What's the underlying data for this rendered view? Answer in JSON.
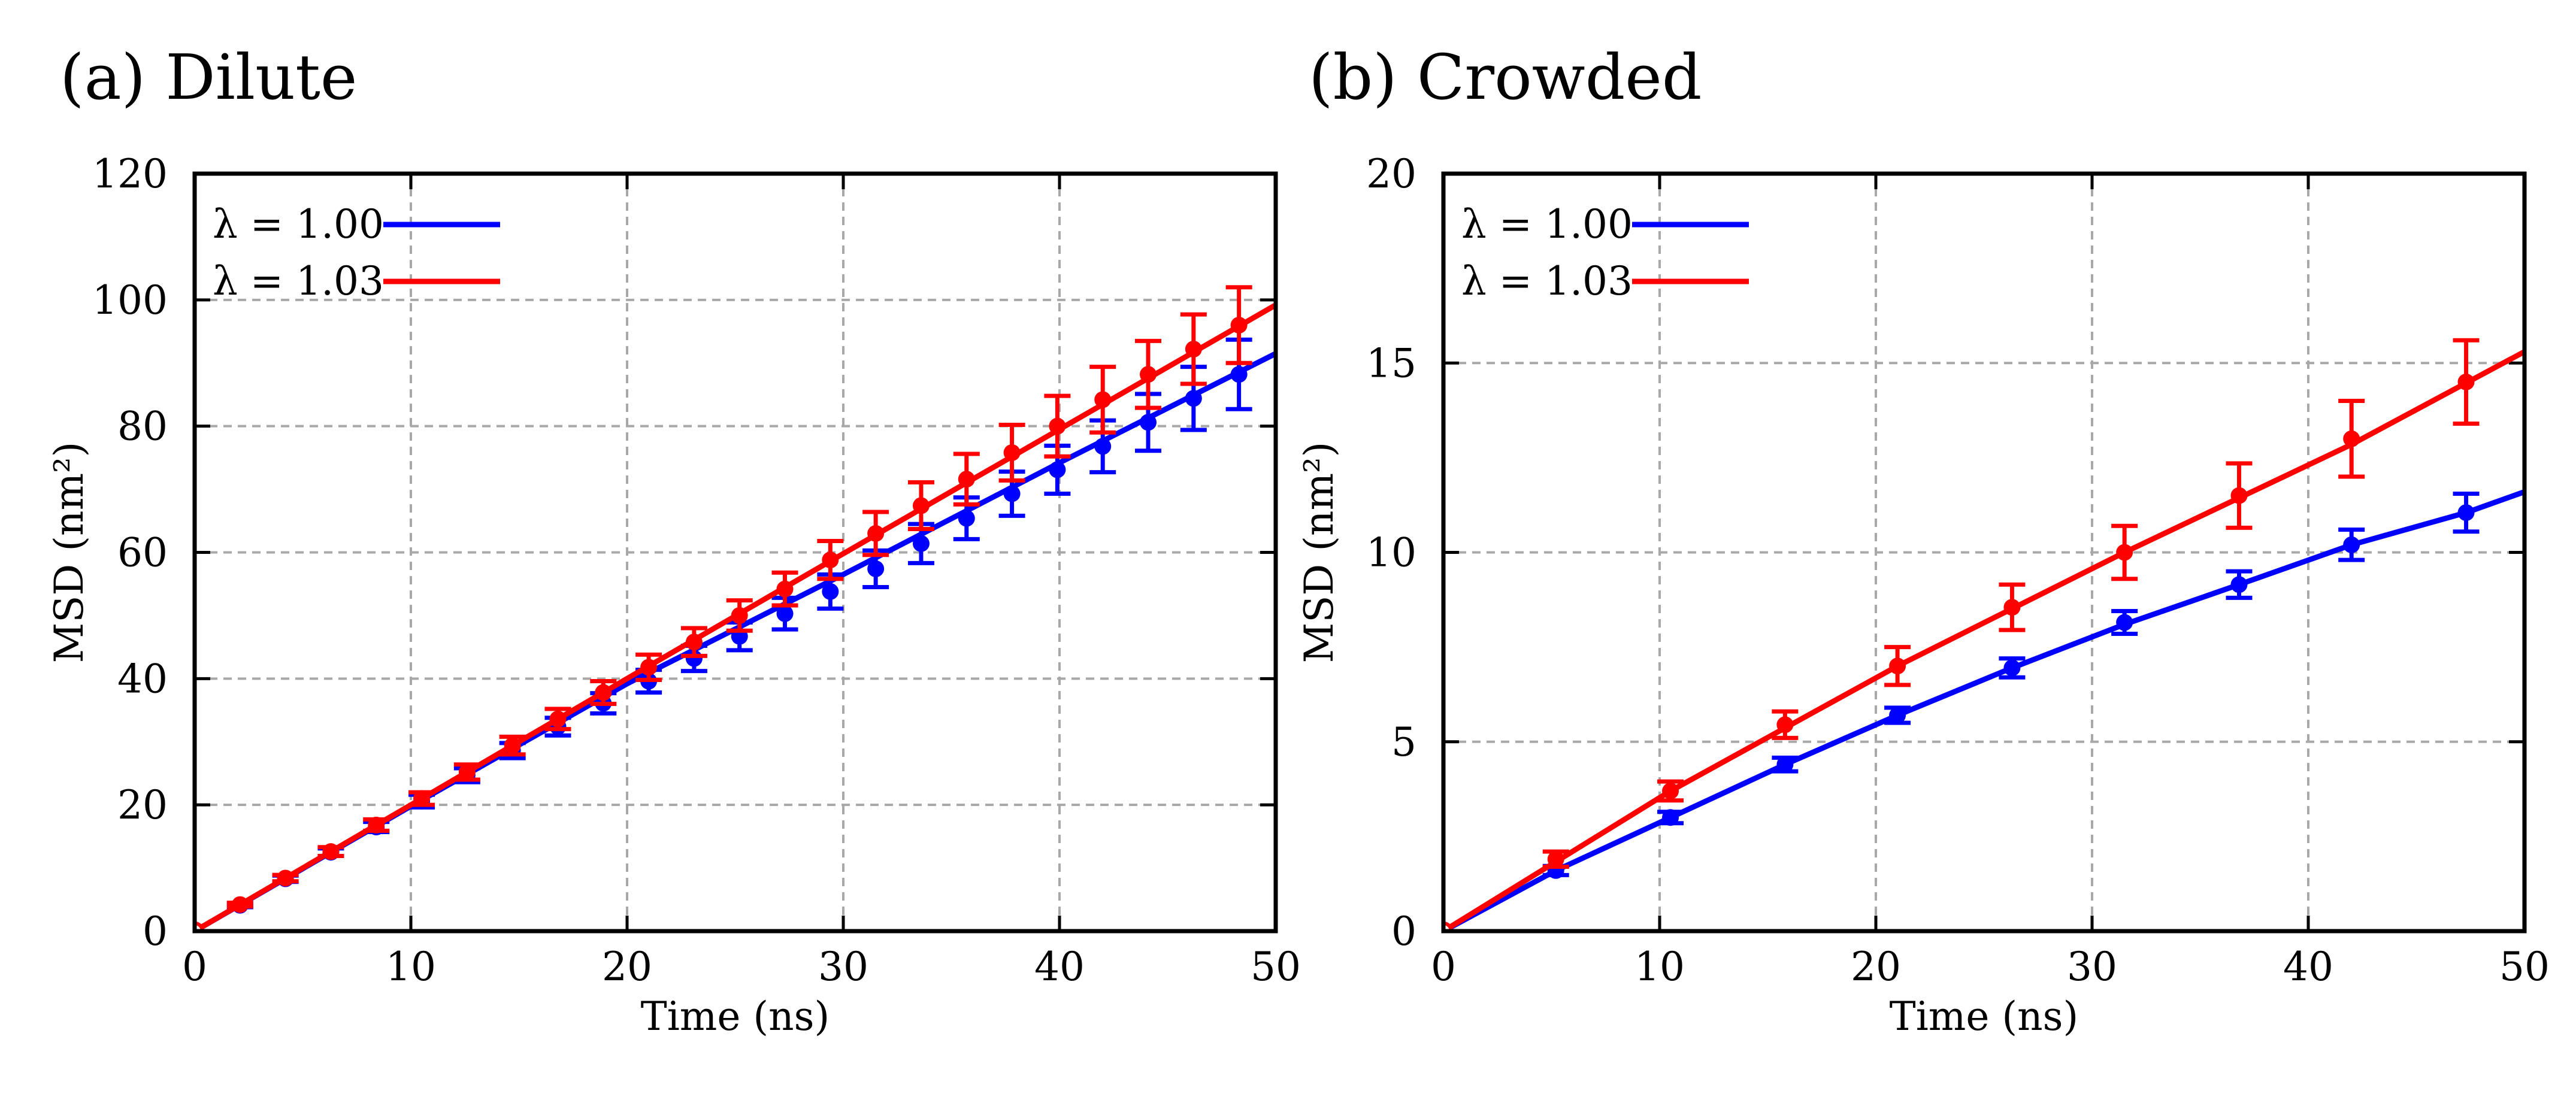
{
  "chart_data": [
    {
      "type": "line",
      "panel_label": "(a) Dilute",
      "xlabel": "Time (ns)",
      "ylabel": "MSD (nm²)",
      "xlim": [
        0,
        50
      ],
      "ylim": [
        0,
        120
      ],
      "xticks": [
        0,
        10,
        20,
        30,
        40,
        50
      ],
      "yticks": [
        0,
        20,
        40,
        60,
        80,
        100,
        120
      ],
      "grid": true,
      "legend_position": "top-left",
      "series": [
        {
          "name": "λ = 1.00",
          "color": "#0000ff",
          "line": [
            [
              0,
              0
            ],
            [
              10,
              19.8
            ],
            [
              20,
              39.2
            ],
            [
              30,
              56.5
            ],
            [
              40,
              74.2
            ],
            [
              50,
              91.5
            ]
          ],
          "points": [
            [
              2.1,
              4.1
            ],
            [
              4.2,
              8.3
            ],
            [
              6.3,
              12.5
            ],
            [
              8.4,
              16.5
            ],
            [
              10.5,
              20.6
            ],
            [
              12.6,
              24.7
            ],
            [
              14.7,
              28.6
            ],
            [
              16.8,
              32.4
            ],
            [
              18.9,
              36.1
            ],
            [
              21.0,
              39.6
            ],
            [
              23.1,
              43.2
            ],
            [
              25.2,
              46.7
            ],
            [
              27.3,
              50.3
            ],
            [
              29.4,
              53.8
            ],
            [
              31.5,
              57.4
            ],
            [
              33.6,
              61.4
            ],
            [
              35.7,
              65.4
            ],
            [
              37.8,
              69.3
            ],
            [
              39.9,
              73.1
            ],
            [
              42.0,
              76.8
            ],
            [
              44.1,
              80.6
            ],
            [
              46.2,
              84.4
            ],
            [
              48.3,
              88.2
            ]
          ],
          "errors": [
            0.3,
            0.5,
            0.6,
            0.8,
            1.0,
            1.1,
            1.2,
            1.4,
            1.6,
            1.8,
            2.0,
            2.2,
            2.5,
            2.7,
            2.9,
            3.1,
            3.3,
            3.5,
            3.8,
            4.1,
            4.5,
            5.0,
            5.5
          ]
        },
        {
          "name": "λ = 1.03",
          "color": "#ff0000",
          "line": [
            [
              0,
              0
            ],
            [
              10,
              20.0
            ],
            [
              20,
              40.0
            ],
            [
              30,
              59.8
            ],
            [
              40,
              79.5
            ],
            [
              50,
              99.2
            ]
          ],
          "points": [
            [
              2.1,
              4.2
            ],
            [
              4.2,
              8.4
            ],
            [
              6.3,
              12.6
            ],
            [
              8.4,
              16.8
            ],
            [
              10.5,
              21.0
            ],
            [
              12.6,
              25.2
            ],
            [
              14.7,
              29.4
            ],
            [
              16.8,
              33.6
            ],
            [
              18.9,
              37.8
            ],
            [
              21.0,
              41.8
            ],
            [
              23.1,
              45.8
            ],
            [
              25.2,
              50.0
            ],
            [
              27.3,
              54.2
            ],
            [
              29.4,
              58.8
            ],
            [
              31.5,
              63.0
            ],
            [
              33.6,
              67.4
            ],
            [
              35.7,
              71.6
            ],
            [
              37.8,
              75.8
            ],
            [
              39.9,
              80.0
            ],
            [
              42.0,
              84.2
            ],
            [
              44.1,
              88.2
            ],
            [
              46.2,
              92.2
            ],
            [
              48.3,
              96.0
            ]
          ],
          "errors": [
            0.3,
            0.5,
            0.7,
            0.9,
            1.0,
            1.2,
            1.4,
            1.6,
            1.8,
            2.0,
            2.2,
            2.4,
            2.6,
            3.0,
            3.4,
            3.7,
            4.0,
            4.4,
            4.8,
            5.2,
            5.3,
            5.5,
            6.0
          ]
        }
      ]
    },
    {
      "type": "line",
      "panel_label": "(b) Crowded",
      "xlabel": "Time (ns)",
      "ylabel": "MSD (nm²)",
      "xlim": [
        0,
        50
      ],
      "ylim": [
        0,
        20
      ],
      "xticks": [
        0,
        10,
        20,
        30,
        40,
        50
      ],
      "yticks": [
        0,
        5,
        10,
        15,
        20
      ],
      "grid": true,
      "legend_position": "top-left",
      "series": [
        {
          "name": "λ = 1.00",
          "color": "#0000ff",
          "line": [
            [
              0,
              0
            ],
            [
              5.2,
              1.6
            ],
            [
              10.5,
              3.0
            ],
            [
              15.8,
              4.4
            ],
            [
              21.0,
              5.7
            ],
            [
              26.3,
              6.95
            ],
            [
              31.5,
              8.1
            ],
            [
              36.8,
              9.15
            ],
            [
              42.0,
              10.2
            ],
            [
              47.3,
              11.05
            ],
            [
              50,
              11.6
            ]
          ],
          "points": [
            [
              5.2,
              1.6
            ],
            [
              10.5,
              3.0
            ],
            [
              15.8,
              4.4
            ],
            [
              21.0,
              5.7
            ],
            [
              26.3,
              6.95
            ],
            [
              31.5,
              8.15
            ],
            [
              36.8,
              9.15
            ],
            [
              42.0,
              10.2
            ],
            [
              47.3,
              11.05
            ]
          ],
          "errors": [
            0.12,
            0.15,
            0.18,
            0.2,
            0.25,
            0.3,
            0.35,
            0.4,
            0.5
          ]
        },
        {
          "name": "λ = 1.03",
          "color": "#ff0000",
          "line": [
            [
              0,
              0
            ],
            [
              10.5,
              3.7
            ],
            [
              21.0,
              7.0
            ],
            [
              31.5,
              10.0
            ],
            [
              42.0,
              12.85
            ],
            [
              50,
              15.3
            ]
          ],
          "points": [
            [
              5.2,
              1.9
            ],
            [
              10.5,
              3.7
            ],
            [
              15.8,
              5.45
            ],
            [
              21.0,
              7.0
            ],
            [
              26.3,
              8.55
            ],
            [
              31.5,
              10.0
            ],
            [
              36.8,
              11.5
            ],
            [
              42.0,
              13.0
            ],
            [
              47.3,
              14.5
            ]
          ],
          "errors": [
            0.2,
            0.25,
            0.35,
            0.5,
            0.6,
            0.7,
            0.85,
            1.0,
            1.1
          ]
        }
      ]
    }
  ]
}
